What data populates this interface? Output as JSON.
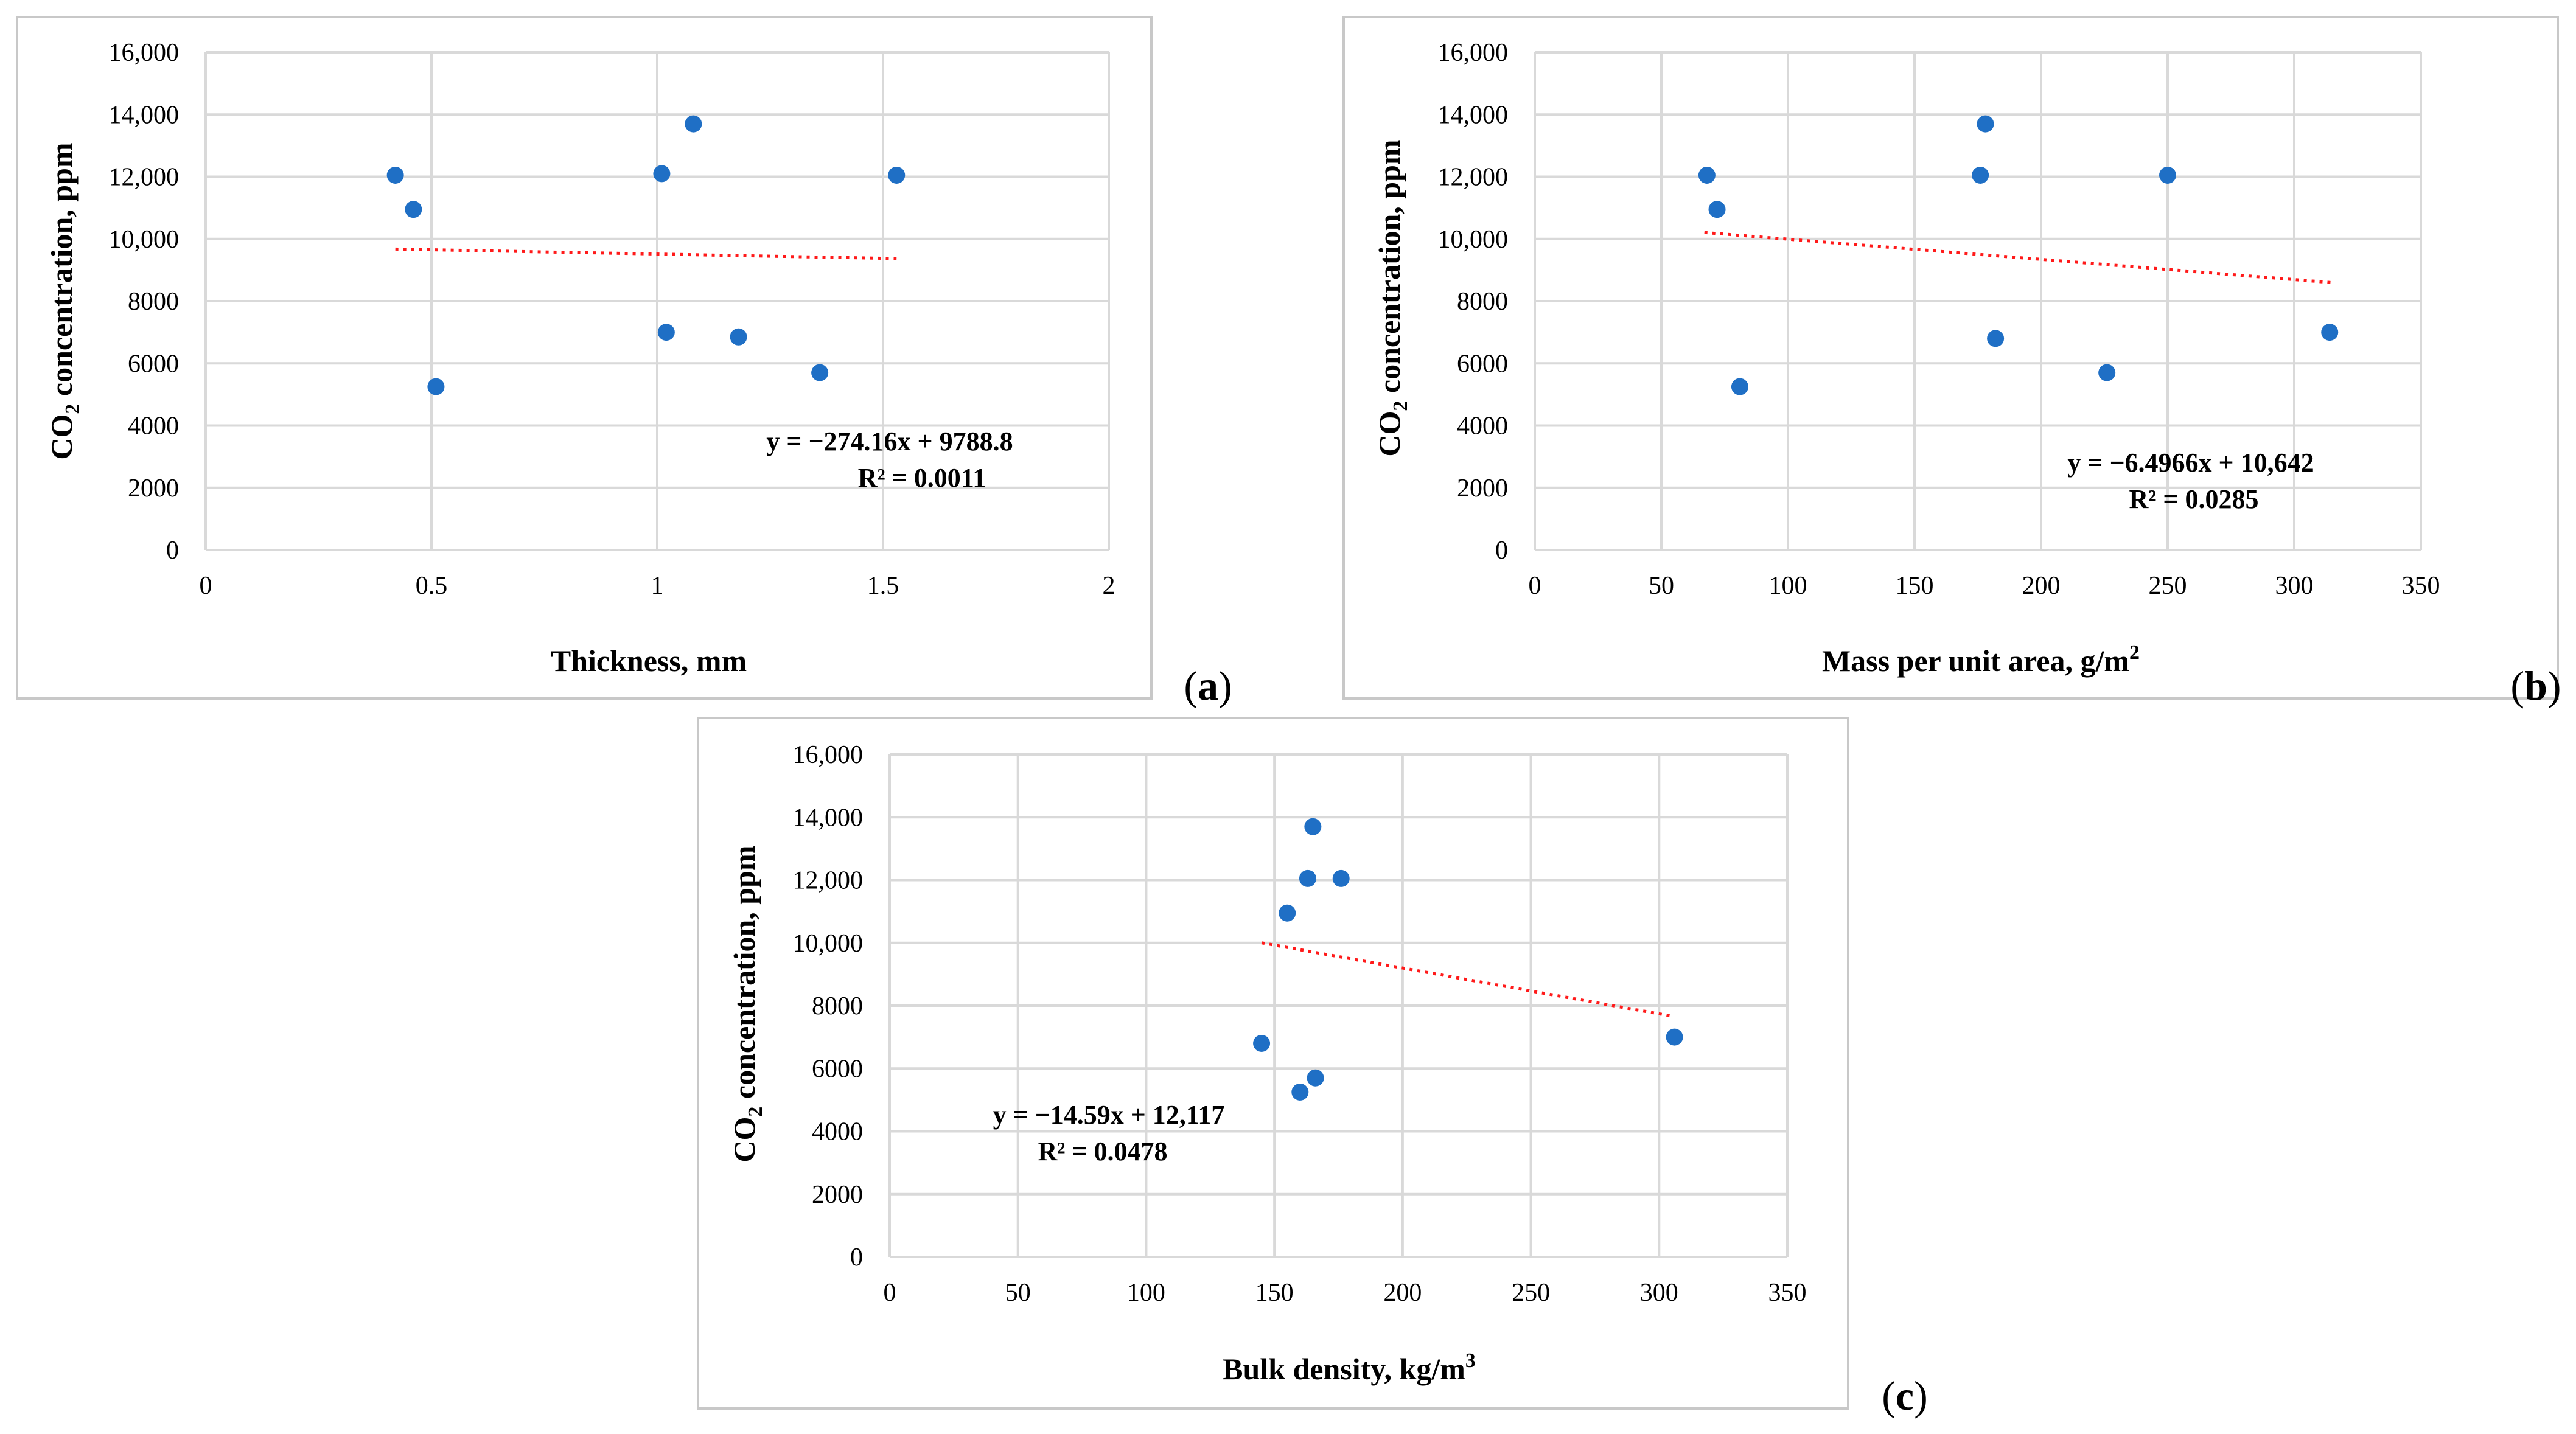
{
  "chart_data": [
    {
      "id": "a",
      "type": "scatter",
      "panel_label": "a",
      "xlabel": "Thickness, mm",
      "ylabel_prefix": "CO",
      "ylabel_sub": "2",
      "ylabel_suffix": " concentration, ppm",
      "xlim": [
        0,
        2
      ],
      "ylim": [
        0,
        16000
      ],
      "xticks": [
        0,
        0.5,
        1,
        1.5,
        2
      ],
      "xtick_labels": [
        "0",
        "0.5",
        "1",
        "1.5",
        "2"
      ],
      "yticks": [
        0,
        2000,
        4000,
        6000,
        8000,
        10000,
        12000,
        14000,
        16000
      ],
      "ytick_labels": [
        "0",
        "2000",
        "4000",
        "6000",
        "8000",
        "10,000",
        "12,000",
        "14,000",
        "16,000"
      ],
      "grid": true,
      "points": [
        {
          "x": 0.42,
          "y": 12050
        },
        {
          "x": 0.46,
          "y": 10950
        },
        {
          "x": 0.51,
          "y": 5250
        },
        {
          "x": 1.01,
          "y": 12100
        },
        {
          "x": 1.02,
          "y": 7000
        },
        {
          "x": 1.08,
          "y": 13700
        },
        {
          "x": 1.18,
          "y": 6850
        },
        {
          "x": 1.36,
          "y": 5700
        },
        {
          "x": 1.53,
          "y": 12050
        }
      ],
      "trendline": {
        "slope": -274.16,
        "intercept": 9788.8,
        "x_range": [
          0.42,
          1.53
        ]
      },
      "equation": "y = −274.16x + 9788.8",
      "r2": "R² = 0.0011"
    },
    {
      "id": "b",
      "type": "scatter",
      "panel_label": "b",
      "xlabel_main": "Mass per unit area, g/m",
      "xlabel_sup": "2",
      "ylabel_prefix": "CO",
      "ylabel_sub": "2",
      "ylabel_suffix": " concentration, ppm",
      "xlim": [
        0,
        350
      ],
      "ylim": [
        0,
        16000
      ],
      "xticks": [
        0,
        50,
        100,
        150,
        200,
        250,
        300,
        350
      ],
      "xtick_labels": [
        "0",
        "50",
        "100",
        "150",
        "200",
        "250",
        "300",
        "350"
      ],
      "yticks": [
        0,
        2000,
        4000,
        6000,
        8000,
        10000,
        12000,
        14000,
        16000
      ],
      "ytick_labels": [
        "0",
        "2000",
        "4000",
        "6000",
        "8000",
        "10,000",
        "12,000",
        "14,000",
        "16,000"
      ],
      "grid": true,
      "points": [
        {
          "x": 68,
          "y": 12050
        },
        {
          "x": 72,
          "y": 10950
        },
        {
          "x": 81,
          "y": 5250
        },
        {
          "x": 176,
          "y": 12050
        },
        {
          "x": 178,
          "y": 13700
        },
        {
          "x": 182,
          "y": 6800
        },
        {
          "x": 226,
          "y": 5700
        },
        {
          "x": 250,
          "y": 12050
        },
        {
          "x": 314,
          "y": 7000
        }
      ],
      "trendline": {
        "slope": -6.4966,
        "intercept": 10642,
        "x_range": [
          67,
          315
        ]
      },
      "equation": "y = −6.4966x + 10,642",
      "r2": "R² = 0.0285"
    },
    {
      "id": "c",
      "type": "scatter",
      "panel_label": "c",
      "xlabel_main": "Bulk density, kg/m",
      "xlabel_sup": "3",
      "ylabel_prefix": "CO",
      "ylabel_sub": "2",
      "ylabel_suffix": " concentration, ppm",
      "xlim": [
        0,
        350
      ],
      "ylim": [
        0,
        16000
      ],
      "xticks": [
        0,
        50,
        100,
        150,
        200,
        250,
        300,
        350
      ],
      "xtick_labels": [
        "0",
        "50",
        "100",
        "150",
        "200",
        "250",
        "300",
        "350"
      ],
      "yticks": [
        0,
        2000,
        4000,
        6000,
        8000,
        10000,
        12000,
        14000,
        16000
      ],
      "ytick_labels": [
        "0",
        "2000",
        "4000",
        "6000",
        "8000",
        "10,000",
        "12,000",
        "14,000",
        "16,000"
      ],
      "grid": true,
      "points": [
        {
          "x": 145,
          "y": 6800
        },
        {
          "x": 155,
          "y": 10950
        },
        {
          "x": 160,
          "y": 5250
        },
        {
          "x": 163,
          "y": 12050
        },
        {
          "x": 165,
          "y": 13700
        },
        {
          "x": 166,
          "y": 5700
        },
        {
          "x": 176,
          "y": 12050
        },
        {
          "x": 306,
          "y": 7000
        }
      ],
      "trendline": {
        "slope": -14.59,
        "intercept": 12117,
        "x_range": [
          145,
          305
        ]
      },
      "equation": "y = −14.59x + 12,117",
      "r2": "R² = 0.0478"
    }
  ]
}
